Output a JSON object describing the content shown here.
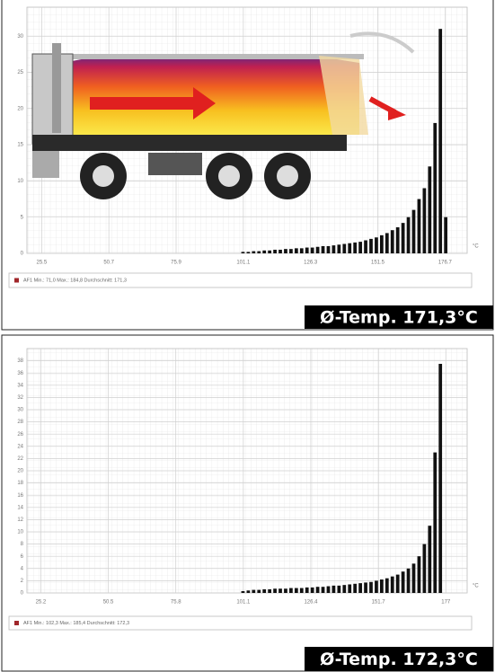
{
  "chart_data": [
    {
      "type": "histogram",
      "bins": [
        100,
        102,
        104,
        106,
        108,
        110,
        112,
        114,
        116,
        118,
        120,
        122,
        124,
        126,
        128,
        130,
        132,
        134,
        136,
        138,
        140,
        142,
        144,
        146,
        148,
        150,
        152,
        154,
        156,
        158,
        160,
        162,
        164,
        166,
        168,
        170,
        172,
        174,
        176,
        178
      ],
      "values": [
        0.2,
        0.2,
        0.3,
        0.3,
        0.4,
        0.4,
        0.5,
        0.5,
        0.6,
        0.6,
        0.7,
        0.7,
        0.8,
        0.8,
        0.9,
        1,
        1,
        1.1,
        1.2,
        1.3,
        1.4,
        1.5,
        1.6,
        1.8,
        2,
        2.2,
        2.5,
        2.8,
        3.2,
        3.6,
        4.2,
        5,
        6,
        7.5,
        9,
        12,
        18,
        31,
        5
      ],
      "color": "#111111",
      "xlim": [
        20,
        185
      ],
      "xticks": [
        25.5,
        50.7,
        75.9,
        101.1,
        126.3,
        151.5,
        176.7
      ],
      "ylim": [
        0,
        34
      ],
      "yticks": [
        0,
        5,
        10,
        15,
        20,
        25,
        30
      ],
      "xlabel": "°C",
      "legend_text": "AF1 Min.: 71,0 Max.: 184,8 Durchschnitt: 171,3",
      "legend_color": "#a0262a",
      "annotation": "Ø-Temp. 171,3°C"
    },
    {
      "type": "histogram",
      "bins": [
        100,
        102,
        104,
        106,
        108,
        110,
        112,
        114,
        116,
        118,
        120,
        122,
        124,
        126,
        128,
        130,
        132,
        134,
        136,
        138,
        140,
        142,
        144,
        146,
        148,
        150,
        152,
        154,
        156,
        158,
        160,
        162,
        164,
        166,
        168,
        170,
        172,
        174,
        176
      ],
      "values": [
        0.3,
        0.4,
        0.5,
        0.5,
        0.6,
        0.6,
        0.7,
        0.7,
        0.7,
        0.8,
        0.8,
        0.8,
        0.9,
        0.9,
        1,
        1,
        1.1,
        1.2,
        1.2,
        1.3,
        1.4,
        1.5,
        1.6,
        1.7,
        1.8,
        2,
        2.2,
        2.4,
        2.7,
        3,
        3.5,
        4,
        4.8,
        6,
        8,
        11,
        23,
        37.5
      ],
      "color": "#111111",
      "xlim": [
        20,
        185
      ],
      "xticks": [
        25.2,
        50.5,
        75.8,
        101.1,
        126.4,
        151.7,
        177.0
      ],
      "ylim": [
        0,
        40
      ],
      "yticks": [
        0,
        2,
        4,
        6,
        8,
        10,
        12,
        14,
        16,
        18,
        20,
        22,
        24,
        26,
        28,
        30,
        32,
        34,
        36,
        38
      ],
      "xlabel": "°C",
      "legend_text": "AF1 Min.: 102,3 Max.: 185,4 Durchschnitt: 172,3",
      "legend_color": "#a0262a",
      "annotation": "Ø-Temp. 172,3°C"
    }
  ]
}
